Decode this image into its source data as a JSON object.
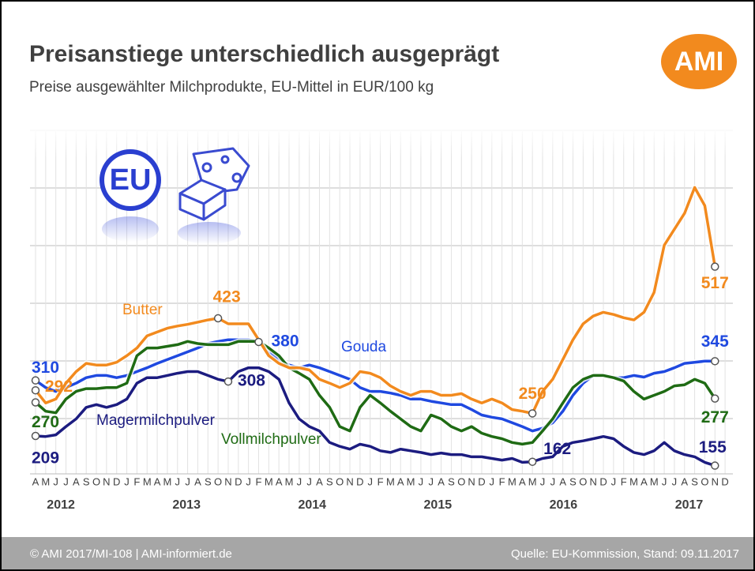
{
  "header": {
    "title": "Preisanstiege unterschiedlich ausgeprägt",
    "subtitle": "Preise ausgewählter Milchprodukte, EU-Mittel in EUR/100 kg",
    "logo": "AMI"
  },
  "icon_label": "EU",
  "chart_data": {
    "type": "line",
    "categories": [
      "A",
      "M",
      "J",
      "J",
      "A",
      "S",
      "O",
      "N",
      "D",
      "J",
      "F",
      "M",
      "A",
      "M",
      "J",
      "J",
      "A",
      "S",
      "O",
      "N",
      "D",
      "J",
      "F",
      "M",
      "A",
      "M",
      "J",
      "J",
      "A",
      "S",
      "O",
      "N",
      "D",
      "J",
      "F",
      "M",
      "A",
      "M",
      "J",
      "J",
      "A",
      "S",
      "O",
      "N",
      "D",
      "J",
      "F",
      "M",
      "A",
      "M",
      "J",
      "J",
      "A",
      "S",
      "O",
      "N",
      "D",
      "J",
      "F",
      "M",
      "A",
      "M",
      "J",
      "J",
      "A",
      "S",
      "O",
      "N",
      "D"
    ],
    "years": [
      "2012",
      "2013",
      "2014",
      "2015",
      "2016",
      "2017"
    ],
    "ylim": [
      140,
      765
    ],
    "series": [
      {
        "name": "Butter",
        "color": "#f28a1e",
        "values": [
          292,
          269,
          276,
          305,
          326,
          341,
          338,
          338,
          343,
          355,
          369,
          391,
          398,
          405,
          409,
          412,
          416,
          420,
          423,
          413,
          413,
          413,
          384,
          355,
          341,
          333,
          333,
          329,
          312,
          305,
          297,
          305,
          326,
          323,
          315,
          300,
          290,
          283,
          290,
          290,
          283,
          283,
          286,
          276,
          269,
          276,
          269,
          257,
          254,
          250,
          290,
          312,
          348,
          384,
          413,
          427,
          434,
          430,
          424,
          420,
          434,
          470,
          556,
          585,
          614,
          661,
          628,
          517,
          null
        ],
        "value_labels": [
          "292",
          null,
          null,
          null,
          null,
          null,
          null,
          null,
          null,
          null,
          null,
          null,
          null,
          null,
          null,
          null,
          null,
          null,
          "423",
          null,
          null,
          null,
          null,
          null,
          null,
          null,
          null,
          null,
          null,
          null,
          null,
          null,
          null,
          null,
          null,
          null,
          null,
          null,
          null,
          null,
          null,
          null,
          null,
          null,
          null,
          null,
          null,
          null,
          null,
          "250",
          null,
          null,
          null,
          null,
          null,
          null,
          null,
          null,
          null,
          null,
          null,
          null,
          null,
          null,
          null,
          null,
          null,
          "517",
          null
        ]
      },
      {
        "name": "Gouda",
        "color": "#1f49e0",
        "values": [
          310,
          297,
          290,
          297,
          305,
          315,
          319,
          319,
          315,
          319,
          326,
          333,
          341,
          348,
          355,
          362,
          369,
          377,
          381,
          384,
          384,
          384,
          380,
          362,
          348,
          338,
          333,
          338,
          333,
          326,
          319,
          312,
          297,
          290,
          290,
          287,
          283,
          276,
          276,
          272,
          269,
          266,
          266,
          257,
          247,
          243,
          240,
          233,
          226,
          218,
          223,
          233,
          254,
          283,
          305,
          319,
          319,
          315,
          315,
          319,
          316,
          323,
          326,
          333,
          341,
          343,
          345,
          345,
          null
        ],
        "value_labels": [
          "310",
          null,
          null,
          null,
          null,
          null,
          null,
          null,
          null,
          null,
          null,
          null,
          null,
          null,
          null,
          null,
          null,
          null,
          null,
          null,
          null,
          null,
          "380",
          null,
          null,
          null,
          null,
          null,
          null,
          null,
          null,
          null,
          null,
          null,
          null,
          null,
          null,
          null,
          null,
          null,
          null,
          null,
          null,
          null,
          null,
          null,
          null,
          null,
          null,
          null,
          null,
          null,
          null,
          null,
          null,
          null,
          null,
          null,
          null,
          null,
          null,
          null,
          null,
          null,
          null,
          null,
          null,
          "345",
          null
        ]
      },
      {
        "name": "Vollmilchpulver",
        "color": "#1f6b14",
        "values": [
          270,
          254,
          251,
          276,
          290,
          295,
          295,
          297,
          297,
          305,
          355,
          369,
          369,
          372,
          375,
          381,
          377,
          375,
          375,
          375,
          381,
          381,
          381,
          369,
          355,
          333,
          323,
          312,
          283,
          261,
          226,
          218,
          261,
          283,
          269,
          254,
          240,
          226,
          218,
          247,
          240,
          226,
          218,
          226,
          214,
          208,
          204,
          197,
          194,
          197,
          218,
          240,
          269,
          297,
          312,
          319,
          319,
          315,
          309,
          290,
          276,
          283,
          290,
          300,
          302,
          312,
          305,
          277,
          null
        ],
        "value_labels": [
          "270",
          null,
          null,
          null,
          null,
          null,
          null,
          null,
          null,
          null,
          null,
          null,
          null,
          null,
          null,
          null,
          null,
          null,
          null,
          null,
          null,
          null,
          null,
          null,
          null,
          null,
          null,
          null,
          null,
          null,
          null,
          null,
          null,
          null,
          null,
          null,
          null,
          null,
          null,
          null,
          null,
          null,
          null,
          null,
          null,
          null,
          null,
          null,
          null,
          null,
          null,
          null,
          null,
          null,
          null,
          null,
          null,
          null,
          null,
          null,
          null,
          null,
          null,
          null,
          null,
          null,
          null,
          "277",
          null
        ]
      },
      {
        "name": "Magermilchpulver",
        "color": "#1c1c80",
        "values": [
          209,
          208,
          211,
          226,
          240,
          261,
          266,
          261,
          266,
          276,
          305,
          315,
          315,
          319,
          323,
          326,
          326,
          319,
          312,
          308,
          326,
          333,
          333,
          326,
          312,
          269,
          240,
          226,
          218,
          197,
          190,
          185,
          194,
          190,
          182,
          179,
          185,
          182,
          179,
          175,
          178,
          175,
          175,
          171,
          171,
          168,
          165,
          168,
          161,
          162,
          168,
          171,
          190,
          197,
          200,
          204,
          208,
          204,
          190,
          179,
          175,
          182,
          197,
          182,
          175,
          171,
          161,
          155,
          null
        ],
        "value_labels": [
          "209",
          null,
          null,
          null,
          null,
          null,
          null,
          null,
          null,
          null,
          null,
          null,
          null,
          null,
          null,
          null,
          null,
          null,
          null,
          "308",
          null,
          null,
          null,
          null,
          null,
          null,
          null,
          null,
          null,
          null,
          null,
          null,
          null,
          null,
          null,
          null,
          null,
          null,
          null,
          null,
          null,
          null,
          null,
          null,
          null,
          null,
          null,
          null,
          null,
          "162",
          null,
          null,
          null,
          null,
          null,
          null,
          null,
          null,
          null,
          null,
          null,
          null,
          null,
          null,
          null,
          null,
          null,
          "155",
          null
        ]
      }
    ]
  },
  "footer": {
    "left": "© AMI 2017/MI-108 | AMI-informiert.de",
    "right": "Quelle: EU-Kommission, Stand: 09.11.2017"
  }
}
